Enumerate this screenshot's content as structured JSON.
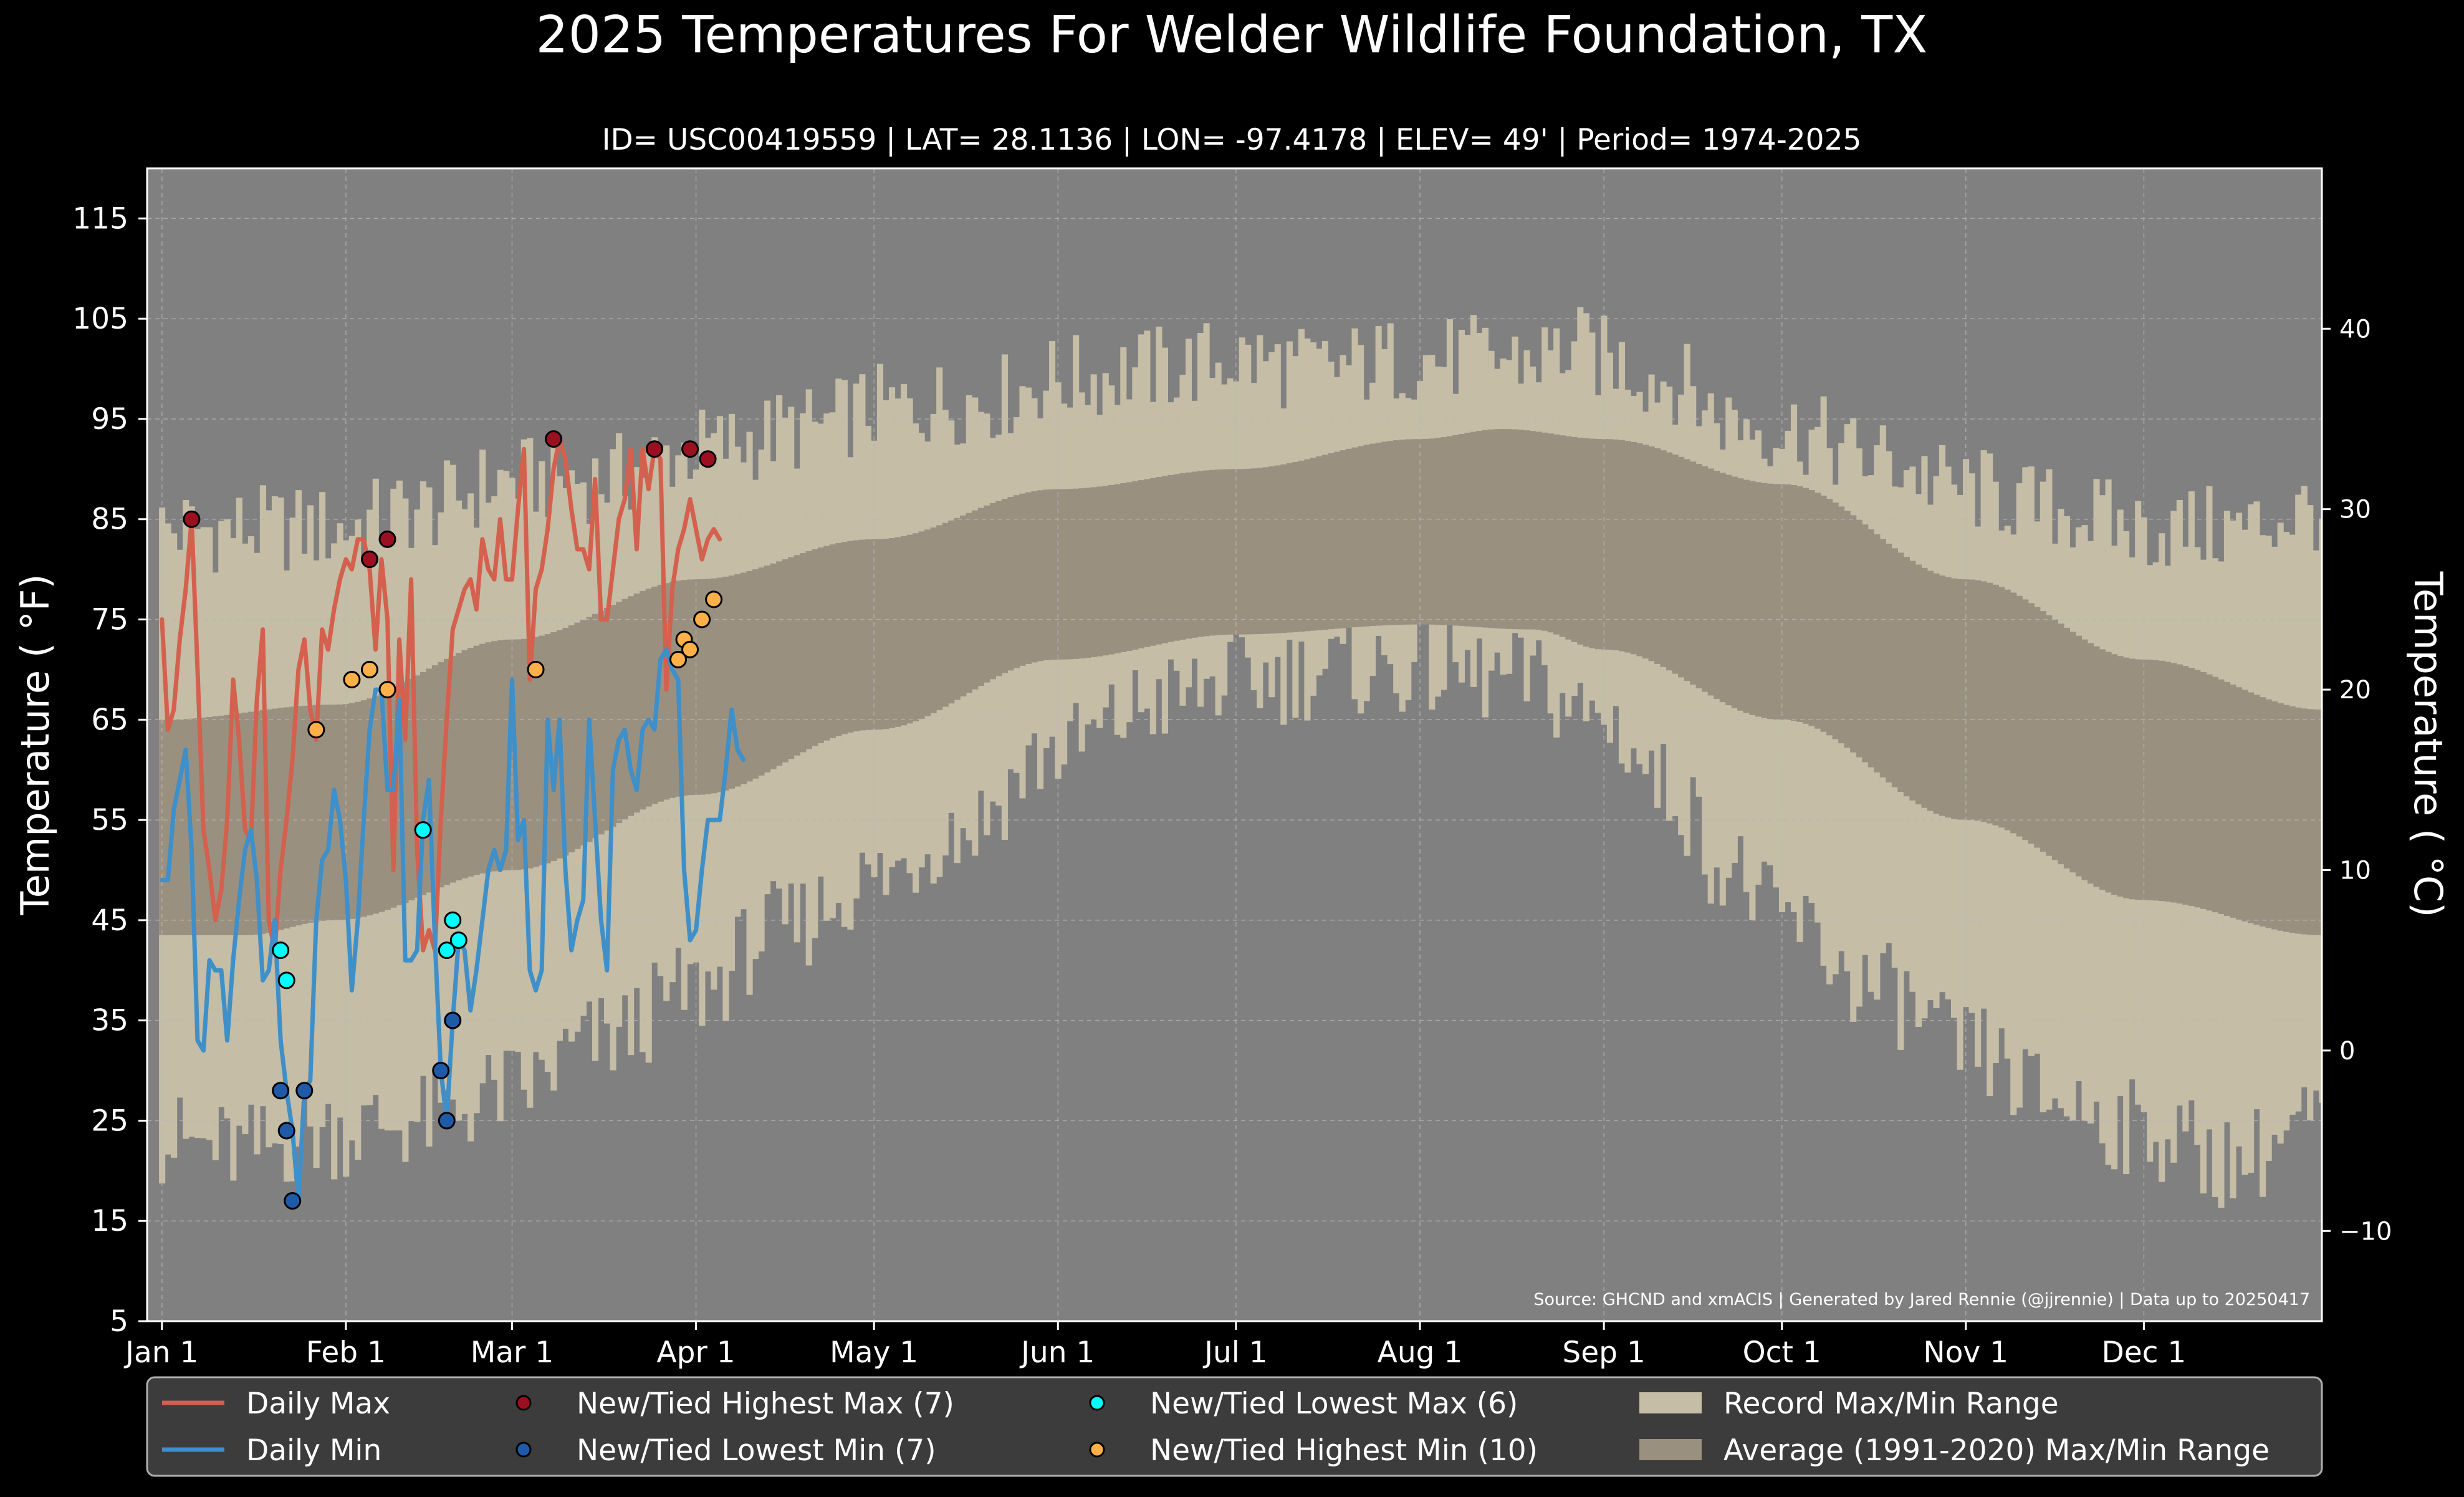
{
  "chart_data": {
    "type": "line",
    "title": "2025 Temperatures For Welder Wildlife Foundation, TX",
    "subtitle": "ID= USC00419559 | LAT= 28.1136 | LON= -97.4178 | ELEV= 49' | Period= 1974-2025",
    "ylabel_left": "Temperature ( °F)",
    "ylabel_right": "Temperature ( °C)",
    "source": "Source: GHCND and xmACIS | Generated by Jared Rennie (@jjrennie) | Data up to 20250417",
    "xlim_day": [
      -1.5,
      365
    ],
    "ylim_f": [
      5,
      120
    ],
    "grid": true,
    "legend_position": "bottom",
    "x_ticks": [
      {
        "label": "Jan 1",
        "day": 1
      },
      {
        "label": "Feb 1",
        "day": 32
      },
      {
        "label": "Mar 1",
        "day": 60
      },
      {
        "label": "Apr 1",
        "day": 91
      },
      {
        "label": "May 1",
        "day": 121
      },
      {
        "label": "Jun 1",
        "day": 152
      },
      {
        "label": "Jul 1",
        "day": 182
      },
      {
        "label": "Aug 1",
        "day": 213
      },
      {
        "label": "Sep 1",
        "day": 244
      },
      {
        "label": "Oct 1",
        "day": 274
      },
      {
        "label": "Nov 1",
        "day": 305
      },
      {
        "label": "Dec 1",
        "day": 335
      }
    ],
    "y_ticks_f": [
      5,
      15,
      25,
      35,
      45,
      55,
      65,
      75,
      85,
      95,
      105,
      115
    ],
    "y_ticks_c": [
      -10,
      0,
      10,
      20,
      30,
      40
    ],
    "colors": {
      "plot_bg": "#808080",
      "record": "#c5bda6",
      "average": "#9a9080",
      "daily_max": "#d4604e",
      "daily_min": "#3f8fc8",
      "new_highest_max": "#9b1020",
      "new_lowest_min": "#1f5aa8",
      "new_lowest_max": "#00ffff",
      "new_highest_min": "#ffb048",
      "grid": "#b8b8b8"
    },
    "normals": {
      "max_anchors": [
        [
          1,
          65
        ],
        [
          30,
          66.5
        ],
        [
          60,
          73
        ],
        [
          91,
          79
        ],
        [
          121,
          83
        ],
        [
          152,
          88
        ],
        [
          182,
          90
        ],
        [
          213,
          93
        ],
        [
          227,
          94
        ],
        [
          244,
          93
        ],
        [
          274,
          88.5
        ],
        [
          305,
          79
        ],
        [
          335,
          71
        ],
        [
          365,
          66
        ]
      ],
      "min_anchors": [
        [
          1,
          43.5
        ],
        [
          15,
          43.5
        ],
        [
          30,
          45
        ],
        [
          60,
          50
        ],
        [
          91,
          57.5
        ],
        [
          121,
          64
        ],
        [
          152,
          71
        ],
        [
          182,
          73.5
        ],
        [
          213,
          74.5
        ],
        [
          232,
          74
        ],
        [
          244,
          72
        ],
        [
          274,
          65
        ],
        [
          305,
          55
        ],
        [
          335,
          47
        ],
        [
          365,
          43.5
        ]
      ]
    },
    "records": {
      "max_anchors": [
        [
          1,
          84
        ],
        [
          30,
          84
        ],
        [
          45,
          86
        ],
        [
          60,
          89
        ],
        [
          75,
          89
        ],
        [
          91,
          92
        ],
        [
          110,
          94
        ],
        [
          121,
          96
        ],
        [
          140,
          97
        ],
        [
          152,
          99
        ],
        [
          170,
          100
        ],
        [
          182,
          101
        ],
        [
          195,
          100
        ],
        [
          213,
          101
        ],
        [
          230,
          101
        ],
        [
          240,
          102
        ],
        [
          244,
          101
        ],
        [
          255,
          99
        ],
        [
          265,
          95
        ],
        [
          274,
          94
        ],
        [
          290,
          91
        ],
        [
          305,
          88
        ],
        [
          320,
          86
        ],
        [
          335,
          84
        ],
        [
          350,
          84
        ],
        [
          365,
          86
        ]
      ],
      "min_anchors": [
        [
          1,
          23
        ],
        [
          15,
          22
        ],
        [
          30,
          24
        ],
        [
          45,
          25
        ],
        [
          60,
          28
        ],
        [
          75,
          33
        ],
        [
          91,
          38
        ],
        [
          105,
          44
        ],
        [
          121,
          49
        ],
        [
          135,
          54
        ],
        [
          152,
          62
        ],
        [
          170,
          67
        ],
        [
          182,
          69
        ],
        [
          200,
          70
        ],
        [
          213,
          70
        ],
        [
          230,
          69
        ],
        [
          244,
          65
        ],
        [
          255,
          58
        ],
        [
          265,
          50
        ],
        [
          274,
          45
        ],
        [
          290,
          38
        ],
        [
          305,
          32
        ],
        [
          320,
          27
        ],
        [
          335,
          24
        ],
        [
          350,
          21
        ],
        [
          365,
          25
        ]
      ]
    },
    "series": [
      {
        "name": "Daily Max",
        "start_day": 1,
        "values": [
          75,
          64,
          66,
          73,
          78,
          85,
          70,
          54,
          50,
          45,
          48,
          55,
          69,
          63,
          54,
          53,
          67,
          74,
          45,
          42,
          50,
          55,
          61,
          70,
          73,
          66,
          63,
          74,
          72,
          76,
          79,
          81,
          80,
          83,
          83,
          80,
          72,
          81,
          75,
          50,
          73,
          63,
          79,
          52,
          42,
          44,
          42,
          55,
          65,
          74,
          76,
          78,
          79,
          76,
          83,
          80,
          79,
          85,
          79,
          79,
          86,
          92,
          69,
          78,
          80,
          84,
          90,
          93,
          91,
          86,
          82,
          82,
          80,
          89,
          75,
          75,
          80,
          85,
          87,
          92,
          82,
          92,
          88,
          92,
          91,
          68,
          78,
          82,
          84,
          87,
          84,
          81,
          83,
          84,
          83
        ]
      },
      {
        "name": "Daily Min",
        "start_day": 1,
        "values": [
          49,
          49,
          56,
          59,
          62,
          52,
          33,
          32,
          41,
          40,
          40,
          33,
          41,
          47,
          52,
          54,
          49,
          39,
          40,
          45,
          33,
          28,
          24,
          17,
          28,
          29,
          45,
          51,
          52,
          58,
          55,
          49,
          38,
          45,
          55,
          64,
          68,
          68,
          58,
          58,
          67,
          41,
          41,
          42,
          55,
          59,
          43,
          30,
          25,
          35,
          43,
          42,
          36,
          40,
          45,
          50,
          52,
          50,
          52,
          69,
          53,
          55,
          40,
          38,
          40,
          65,
          58,
          65,
          50,
          42,
          45,
          47,
          65,
          55,
          45,
          40,
          60,
          63,
          64,
          60,
          58,
          64,
          65,
          64,
          71,
          72,
          70,
          69,
          50,
          43,
          44,
          50,
          55,
          55,
          55,
          60,
          66,
          62,
          61
        ]
      }
    ],
    "record_markers": {
      "highest_max": [
        [
          6,
          85
        ],
        [
          36,
          81
        ],
        [
          39,
          83
        ],
        [
          67,
          93
        ],
        [
          84,
          92
        ],
        [
          90,
          92
        ],
        [
          93,
          91
        ]
      ],
      "lowest_min": [
        [
          21,
          28
        ],
        [
          22,
          24
        ],
        [
          23,
          17
        ],
        [
          25,
          28
        ],
        [
          48,
          30
        ],
        [
          49,
          25
        ],
        [
          50,
          35
        ]
      ],
      "lowest_max": [
        [
          21,
          42
        ],
        [
          22,
          39
        ],
        [
          45,
          54
        ],
        [
          49,
          42
        ],
        [
          50,
          45
        ],
        [
          51,
          43
        ]
      ],
      "highest_min": [
        [
          27,
          64
        ],
        [
          33,
          69
        ],
        [
          36,
          70
        ],
        [
          39,
          68
        ],
        [
          64,
          70
        ],
        [
          88,
          71
        ],
        [
          89,
          73
        ],
        [
          90,
          72
        ],
        [
          92,
          75
        ],
        [
          94,
          77
        ]
      ]
    },
    "legend": [
      {
        "label": "Daily Max",
        "kind": "line",
        "color_key": "daily_max"
      },
      {
        "label": "Daily Min",
        "kind": "line",
        "color_key": "daily_min"
      },
      {
        "label": "New/Tied Highest Max (7)",
        "kind": "dot",
        "color_key": "new_highest_max"
      },
      {
        "label": "New/Tied Lowest Min (7)",
        "kind": "dot",
        "color_key": "new_lowest_min"
      },
      {
        "label": "New/Tied Lowest Max (6)",
        "kind": "dot",
        "color_key": "new_lowest_max"
      },
      {
        "label": "New/Tied Highest Min (10)",
        "kind": "dot",
        "color_key": "new_highest_min"
      },
      {
        "label": "Record Max/Min Range",
        "kind": "patch",
        "color_key": "record"
      },
      {
        "label": "Average (1991-2020) Max/Min Range",
        "kind": "patch",
        "color_key": "average"
      }
    ]
  }
}
